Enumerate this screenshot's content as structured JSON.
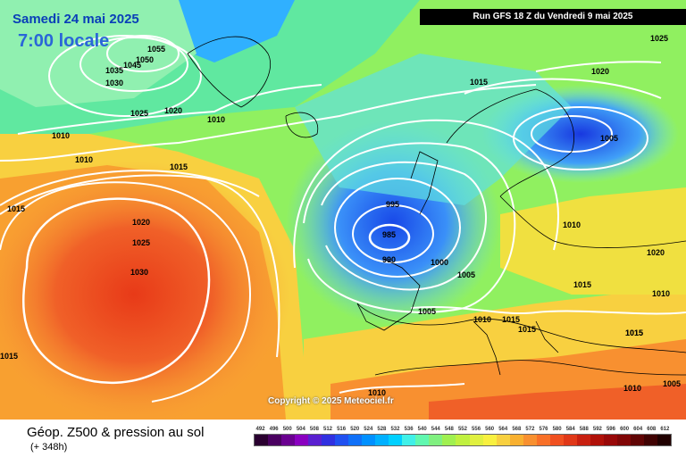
{
  "header": {
    "date_label": "Samedi 24 mai 2025",
    "time_label": "7:00 locale",
    "run_label": "Run GFS 18 Z du Vendredi 9 mai 2025"
  },
  "copyright": "Copyright © 2025 Meteociel.fr",
  "footer": {
    "title": "Géop. Z500 & pression au sol",
    "subtitle": "(+ 348h)"
  },
  "scale": {
    "labels": [
      "492",
      "496",
      "500",
      "504",
      "508",
      "512",
      "516",
      "520",
      "524",
      "528",
      "532",
      "536",
      "540",
      "544",
      "548",
      "552",
      "556",
      "560",
      "564",
      "568",
      "572",
      "576",
      "580",
      "584",
      "588",
      "592",
      "596",
      "600",
      "604",
      "608",
      "612"
    ],
    "colors": [
      "#2a0030",
      "#4a0060",
      "#6a0090",
      "#8a00c0",
      "#5a20d0",
      "#3030e0",
      "#2050f0",
      "#1070f8",
      "#0090ff",
      "#00b0ff",
      "#00d0ff",
      "#40f0e8",
      "#60f8b0",
      "#80f080",
      "#a0f050",
      "#c0f040",
      "#e0f040",
      "#f8f040",
      "#f8d040",
      "#f8b030",
      "#f89030",
      "#f87028",
      "#f05020",
      "#e03818",
      "#c82010",
      "#b01008",
      "#980808",
      "#800606",
      "#600404",
      "#400202",
      "#200000"
    ]
  },
  "pressure_labels": [
    {
      "text": "1055"
    },
    {
      "text": "1050"
    },
    {
      "text": "1045"
    },
    {
      "text": "1035"
    },
    {
      "text": "1030"
    },
    {
      "text": "1025"
    },
    {
      "text": "1020"
    },
    {
      "text": "1010"
    },
    {
      "text": "1010"
    },
    {
      "text": "1010"
    },
    {
      "text": "1015"
    },
    {
      "text": "1015"
    },
    {
      "text": "1020"
    },
    {
      "text": "1025"
    },
    {
      "text": "1030"
    },
    {
      "text": "1015"
    },
    {
      "text": "1015"
    },
    {
      "text": "995"
    },
    {
      "text": "985"
    },
    {
      "text": "990"
    },
    {
      "text": "1000"
    },
    {
      "text": "1005"
    },
    {
      "text": "1005"
    },
    {
      "text": "1010"
    },
    {
      "text": "1015"
    },
    {
      "text": "1015"
    },
    {
      "text": "1015"
    },
    {
      "text": "1015"
    },
    {
      "text": "1010"
    },
    {
      "text": "1025"
    },
    {
      "text": "1020"
    },
    {
      "text": "1005"
    },
    {
      "text": "1010"
    },
    {
      "text": "1020"
    },
    {
      "text": "1015"
    },
    {
      "text": "1010"
    },
    {
      "text": "1005"
    },
    {
      "text": "1010"
    }
  ]
}
